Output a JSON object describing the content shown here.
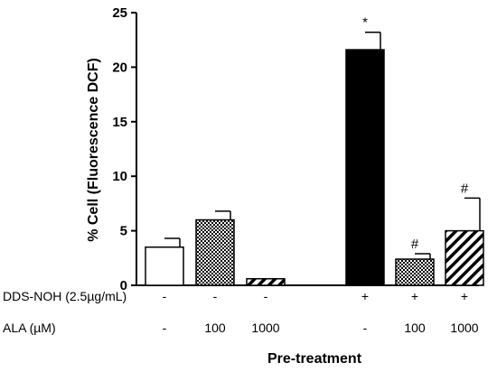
{
  "chart_data": {
    "type": "bar",
    "ylabel": "% Cell (Fluorescence DCF)",
    "xlabel": "Pre-treatment",
    "ylim": [
      0,
      25
    ],
    "yticks": [
      "0",
      "5",
      "10",
      "15",
      "20",
      "25"
    ],
    "grid": false,
    "bars": [
      {
        "value": 3.5,
        "error": 0.8,
        "fill": "white",
        "annotation": ""
      },
      {
        "value": 6.0,
        "error": 0.8,
        "fill": "crosshatch",
        "annotation": ""
      },
      {
        "value": 0.6,
        "error": 0.0,
        "fill": "diagonal",
        "annotation": ""
      },
      {
        "value": 21.6,
        "error": 1.6,
        "fill": "black",
        "annotation": "*"
      },
      {
        "value": 2.4,
        "error": 0.5,
        "fill": "crosshatch",
        "annotation": "#"
      },
      {
        "value": 5.0,
        "error": 3.0,
        "fill": "diagonal",
        "annotation": "#"
      }
    ],
    "treatment_rows": [
      {
        "label": "DDS-NOH (2.5µg/mL)",
        "values": [
          "-",
          "-",
          "-",
          "+",
          "+",
          "+"
        ]
      },
      {
        "label": "ALA (µM)",
        "values": [
          "-",
          "100",
          "1000",
          "-",
          "100",
          "1000"
        ]
      }
    ]
  }
}
